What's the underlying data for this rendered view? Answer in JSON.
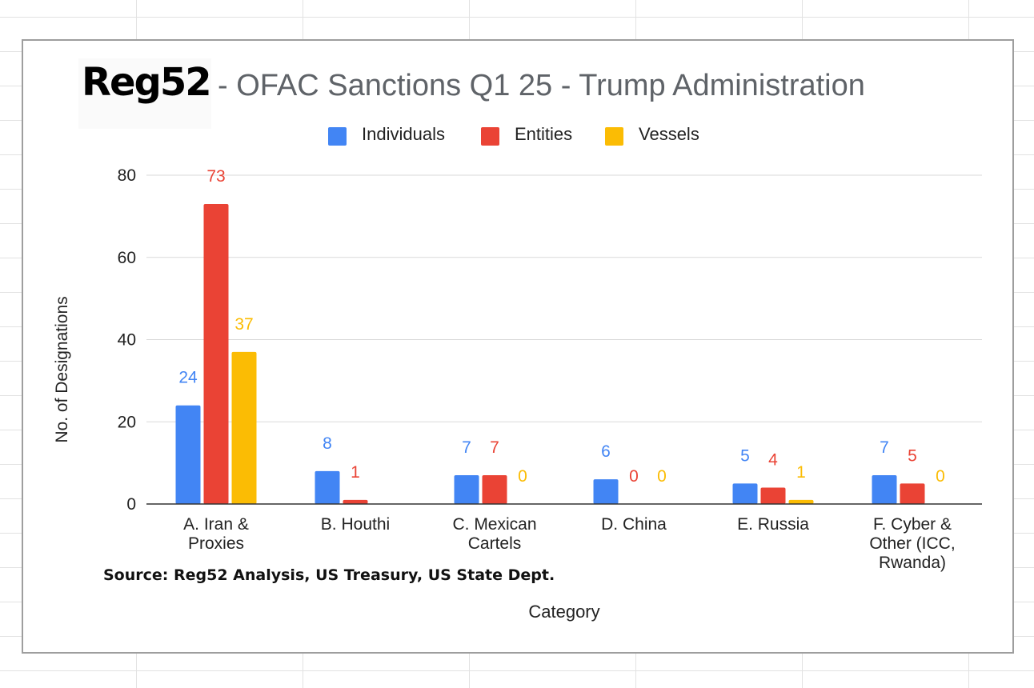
{
  "logo": {
    "text": "Reg52"
  },
  "title_suffix": "- OFAC Sanctions Q1 25 - Trump Administration",
  "source_note": "Source: Reg52 Analysis, US Treasury, US State Dept.",
  "chart_data": {
    "type": "bar",
    "title": "Reg52 - OFAC Sanctions Q1 25 - Trump Administration",
    "xlabel": "Category",
    "ylabel": "No. of Designations",
    "ylim": [
      0,
      80
    ],
    "yticks": [
      0,
      20,
      40,
      60,
      80
    ],
    "grid": true,
    "legend_position": "top",
    "categories": [
      [
        "A. Iran &",
        "Proxies"
      ],
      [
        "B. Houthi"
      ],
      [
        "C. Mexican",
        "Cartels"
      ],
      [
        "D. China"
      ],
      [
        "E. Russia"
      ],
      [
        "F. Cyber &",
        "Other (ICC,",
        "Rwanda)"
      ]
    ],
    "series": [
      {
        "name": "Individuals",
        "color": "#4285f4",
        "values": [
          24,
          8,
          7,
          6,
          5,
          7
        ]
      },
      {
        "name": "Entities",
        "color": "#ea4335",
        "values": [
          73,
          1,
          7,
          0,
          4,
          5
        ]
      },
      {
        "name": "Vessels",
        "color": "#fbbc04",
        "values": [
          37,
          null,
          0,
          0,
          1,
          0
        ]
      }
    ]
  }
}
